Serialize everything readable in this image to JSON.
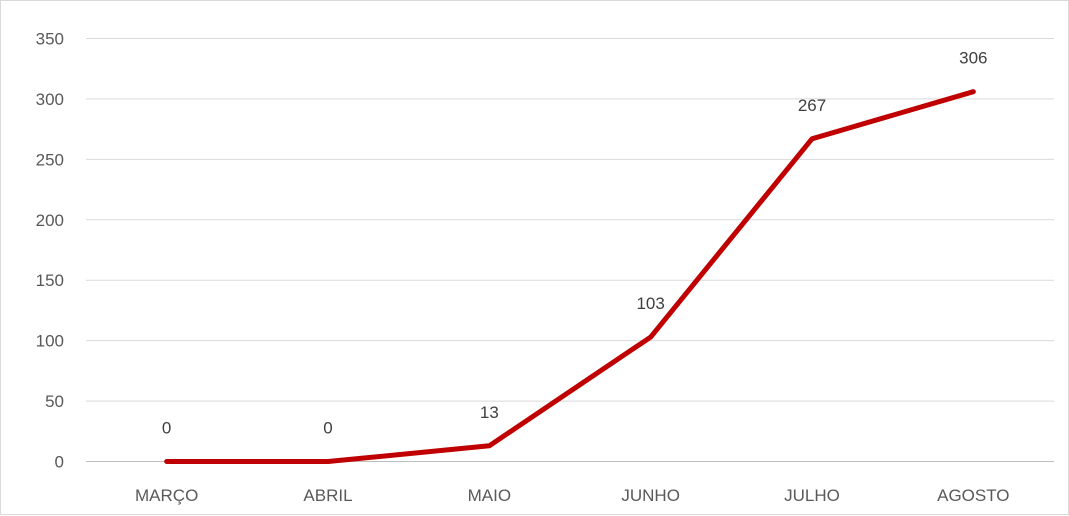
{
  "chart_data": {
    "type": "line",
    "categories": [
      "MARÇO",
      "ABRIL",
      "MAIO",
      "JUNHO",
      "JULHO",
      "AGOSTO"
    ],
    "values": [
      0,
      0,
      13,
      103,
      267,
      306
    ],
    "data_labels": [
      "0",
      "0",
      "13",
      "103",
      "267",
      "306"
    ],
    "yticks": [
      0,
      50,
      100,
      150,
      200,
      250,
      300,
      350
    ],
    "ylim": [
      0,
      350
    ],
    "title": "",
    "xlabel": "",
    "ylabel": "",
    "grid": true,
    "legend": "none",
    "line_color": "#c00000"
  }
}
